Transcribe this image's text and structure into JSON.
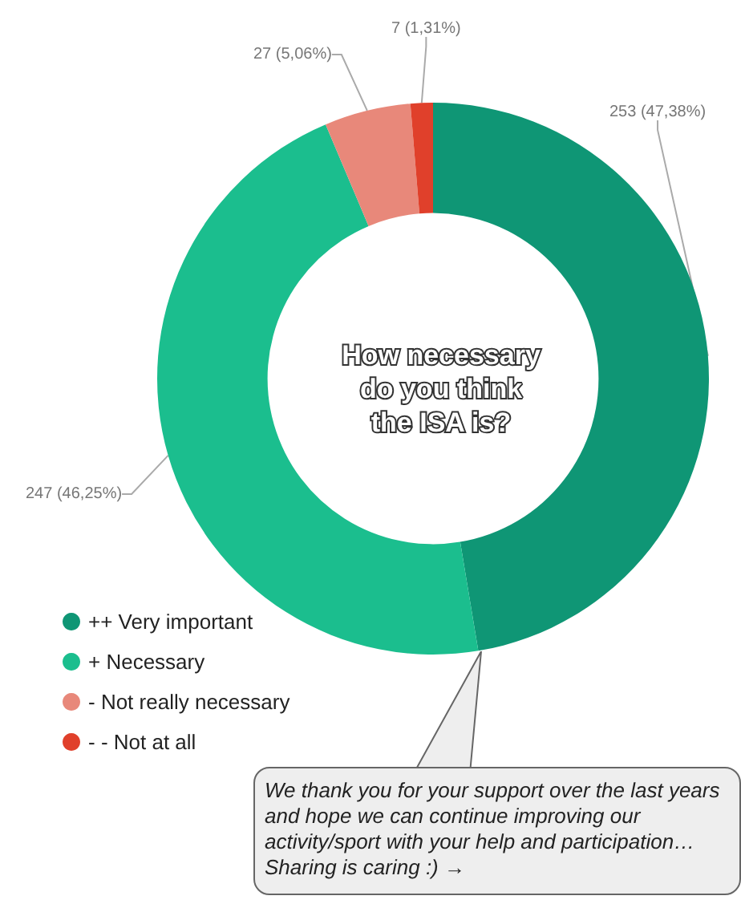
{
  "chart_data": {
    "type": "donut",
    "title": "How necessary do you think the ISA is?",
    "categories": [
      "++ Very important",
      "+ Necessary",
      "- Not really necessary",
      "- - Not at all"
    ],
    "values": [
      253,
      247,
      27,
      7
    ],
    "value_labels": [
      "253 (47,38%)",
      "247 (46,25%)",
      "27 (5,06%)",
      "7 (1,31%)"
    ],
    "colors": [
      "#0f9675",
      "#1bbe8e",
      "#e8887a",
      "#e0402b"
    ],
    "legend": "bottom left",
    "annotations": [
      "We thank you for your support over the last years and hope we can continue improving our activity/sport with your help and participation…Sharing is caring :) →"
    ]
  }
}
